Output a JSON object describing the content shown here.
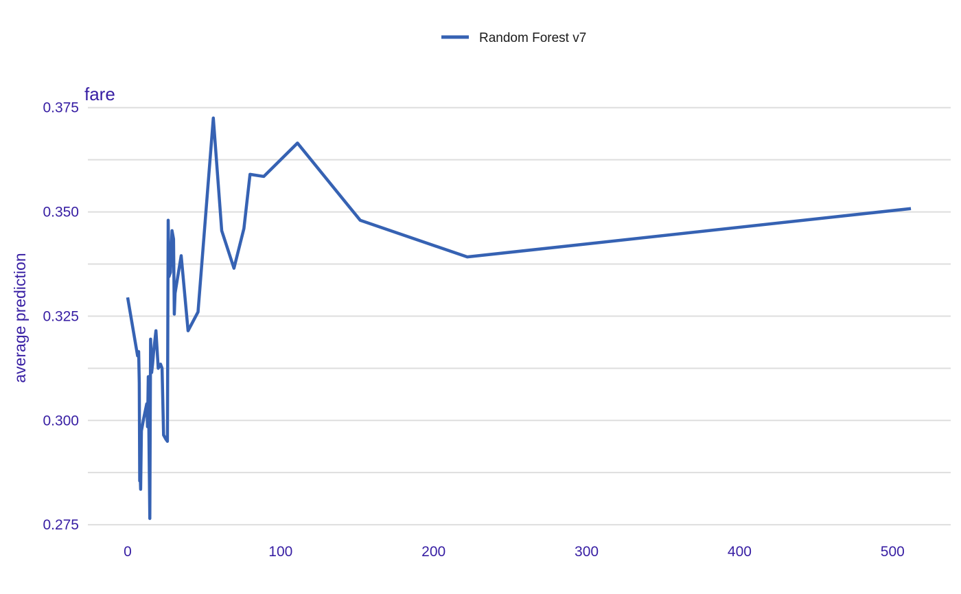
{
  "chart_data": {
    "type": "line",
    "panel_title": "fare",
    "ylabel": "average prediction",
    "xlabel": "",
    "legend": {
      "position": "top",
      "entries": [
        "Random Forest v7"
      ]
    },
    "grid": true,
    "xlim": [
      -26,
      538
    ],
    "ylim": [
      0.2737,
      0.3794
    ],
    "x_ticks": [
      0,
      100,
      200,
      300,
      400,
      500
    ],
    "x_tick_labels": [
      "0",
      "100",
      "200",
      "300",
      "400",
      "500"
    ],
    "y_ticks": [
      0.275,
      0.3,
      0.325,
      0.35,
      0.375
    ],
    "y_tick_labels": [
      "0.275",
      "0.300",
      "0.325",
      "0.350",
      "0.375"
    ],
    "y_minor_ticks": [
      0.2875,
      0.3125,
      0.3375,
      0.3625
    ],
    "series": [
      {
        "name": "Random Forest v7",
        "color": "#3662b3",
        "x": [
          0,
          6.5,
          7.2,
          7.6,
          7.9,
          8.0,
          8.1,
          8.5,
          9.0,
          10.5,
          12.5,
          13.0,
          13.5,
          14.5,
          15.0,
          15.7,
          16.3,
          17.0,
          18.5,
          20.0,
          21.5,
          22.5,
          23.5,
          25.0,
          26.0,
          26.5,
          27.0,
          28.0,
          29.0,
          30.0,
          30.5,
          31.0,
          35.0,
          39.5,
          46.0,
          56.0,
          61.5,
          69.5,
          76.0,
          80.0,
          89.0,
          111.0,
          152.0,
          222.0,
          512.0
        ],
        "y": [
          0.3295,
          0.3155,
          0.3165,
          0.309,
          0.2855,
          0.2865,
          0.2885,
          0.2835,
          0.2975,
          0.3005,
          0.304,
          0.2985,
          0.3105,
          0.2765,
          0.3195,
          0.3115,
          0.3135,
          0.3165,
          0.3215,
          0.3125,
          0.3135,
          0.3125,
          0.2965,
          0.2955,
          0.295,
          0.348,
          0.3345,
          0.3355,
          0.3455,
          0.3435,
          0.3255,
          0.3305,
          0.3395,
          0.3215,
          0.326,
          0.3725,
          0.3455,
          0.3365,
          0.346,
          0.359,
          0.3585,
          0.3665,
          0.348,
          0.3392,
          0.3508
        ]
      }
    ]
  },
  "colors": {
    "axis_text": "#371ea3",
    "grid": "#dedede",
    "line": "#3662b3"
  }
}
